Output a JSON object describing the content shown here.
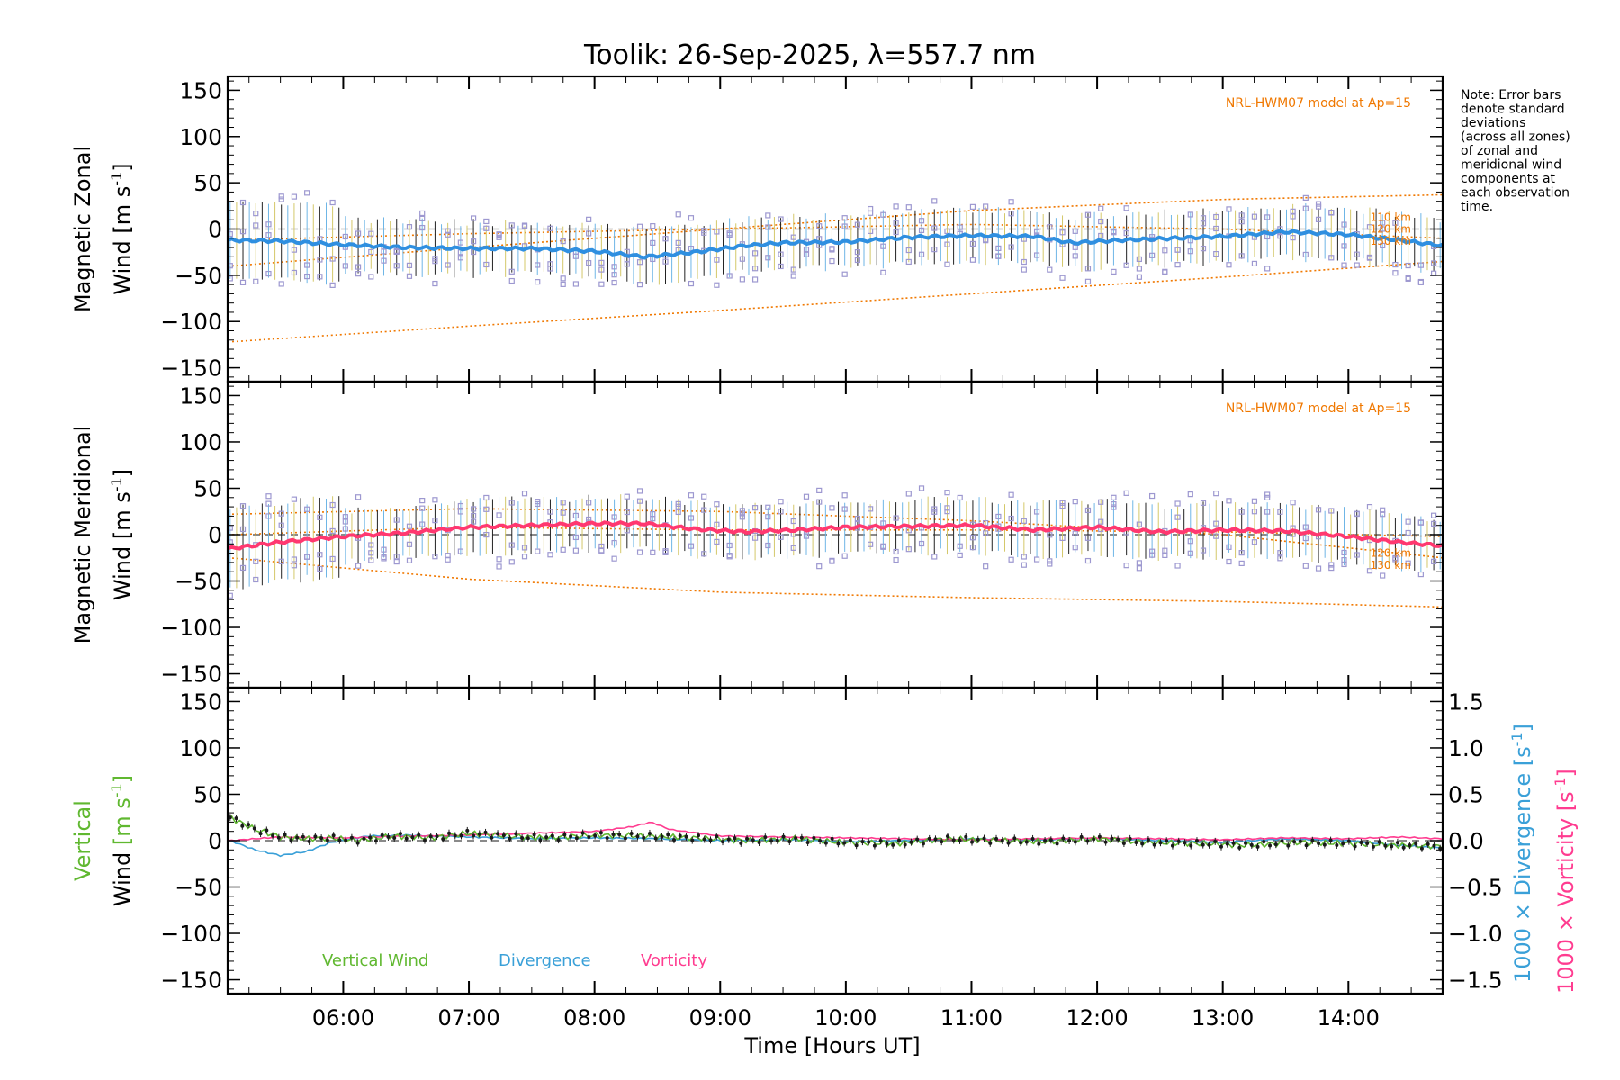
{
  "title": "Toolik: 26-Sep-2025, λ=557.7 nm",
  "note": [
    "Note: Error bars",
    "denote standard",
    "deviations",
    "(across all zones)",
    "of zonal and",
    "meridional wind",
    "components at",
    "each observation",
    "time."
  ],
  "xaxis": {
    "label": "Time [Hours UT]",
    "range": [
      5.08,
      14.75
    ],
    "ticks": [
      6,
      7,
      8,
      9,
      10,
      11,
      12,
      13,
      14
    ],
    "tick_labels": [
      "06:00",
      "07:00",
      "08:00",
      "09:00",
      "10:00",
      "11:00",
      "12:00",
      "13:00",
      "14:00"
    ]
  },
  "colors": {
    "model": "#f07800",
    "scatter": "#9d98d0",
    "zonal": "#2f8fe0",
    "meridional": "#ff3870",
    "vertical": "#60b830",
    "divergence": "#3aa0d8",
    "vorticity": "#ff3c90",
    "axis": "#000000"
  },
  "chart_data": [
    {
      "type": "line",
      "name": "zonal-panel",
      "ylabel_line1": "Magnetic Zonal",
      "ylabel_line2": "Wind [m s",
      "ylabel_sup": "-1",
      "ylabel_close": "]",
      "ylim": [
        -165,
        165
      ],
      "yticks": [
        150,
        100,
        50,
        0,
        -50,
        -100,
        -150
      ],
      "ytick_labels": [
        "150",
        "100",
        "50",
        "0",
        "−50",
        "−100",
        "−150"
      ],
      "model_label": "NRL-HWM07 model at Ap=15",
      "altitude_labels": [
        "110 km",
        "120 km",
        "130 km"
      ],
      "series": [
        {
          "name": "Zonal wind",
          "x": [
            5.1,
            5.5,
            6.0,
            6.5,
            7.0,
            7.5,
            8.0,
            8.4,
            8.8,
            9.2,
            9.5,
            10.0,
            10.5,
            11.0,
            11.5,
            11.8,
            12.2,
            12.6,
            13.0,
            13.5,
            14.0,
            14.4,
            14.75
          ],
          "y": [
            -12,
            -13,
            -17,
            -20,
            -21,
            -21,
            -24,
            -30,
            -25,
            -18,
            -15,
            -14,
            -9,
            -7,
            -8,
            -15,
            -12,
            -10,
            -8,
            -3,
            -6,
            -12,
            -18
          ]
        },
        {
          "name": "HWM07 110 km",
          "x": [
            5.1,
            7,
            9,
            11,
            13,
            14.75
          ],
          "y": [
            -12,
            -5,
            0,
            5,
            0,
            -10
          ]
        },
        {
          "name": "HWM07 120 km",
          "x": [
            5.1,
            7,
            9,
            11,
            13,
            14.75
          ],
          "y": [
            -40,
            -20,
            0,
            20,
            32,
            37
          ]
        },
        {
          "name": "HWM07 130 km",
          "x": [
            5.1,
            7,
            9,
            11,
            13,
            14.75
          ],
          "y": [
            -122,
            -105,
            -88,
            -70,
            -52,
            -35
          ]
        }
      ]
    },
    {
      "type": "line",
      "name": "meridional-panel",
      "ylabel_line1": "Magnetic Meridional",
      "ylabel_line2": "Wind [m s",
      "ylabel_sup": "-1",
      "ylabel_close": "]",
      "ylim": [
        -165,
        165
      ],
      "yticks": [
        150,
        100,
        50,
        0,
        -50,
        -100,
        -150
      ],
      "ytick_labels": [
        "150",
        "100",
        "50",
        "0",
        "−50",
        "−100",
        "−150"
      ],
      "model_label": "NRL-HWM07 model at Ap=15",
      "altitude_labels": [
        "120 km",
        "130 km"
      ],
      "series": [
        {
          "name": "Meridional wind",
          "x": [
            5.1,
            5.5,
            6.0,
            6.5,
            7.0,
            7.5,
            8.0,
            8.4,
            8.8,
            9.2,
            9.6,
            10.0,
            10.5,
            11.0,
            11.5,
            12.0,
            12.5,
            13.0,
            13.5,
            14.0,
            14.4,
            14.75
          ],
          "y": [
            -15,
            -8,
            -2,
            2,
            8,
            10,
            12,
            12,
            6,
            3,
            5,
            8,
            9,
            10,
            5,
            8,
            3,
            5,
            4,
            -2,
            -8,
            -12
          ]
        },
        {
          "name": "HWM07 110 km",
          "x": [
            5.1,
            7,
            9,
            11,
            13,
            14.75
          ],
          "y": [
            0,
            8,
            5,
            5,
            3,
            -2
          ]
        },
        {
          "name": "HWM07 120 km",
          "x": [
            5.1,
            7,
            9,
            11,
            13,
            14.75
          ],
          "y": [
            22,
            28,
            25,
            15,
            0,
            -25
          ]
        },
        {
          "name": "HWM07 130 km",
          "x": [
            5.1,
            7,
            9,
            11,
            13,
            14.75
          ],
          "y": [
            -25,
            -48,
            -62,
            -68,
            -72,
            -78
          ]
        }
      ]
    },
    {
      "type": "line",
      "name": "vertical-panel",
      "ylabel_line1": "Vertical",
      "ylabel_line2": "Wind [m s",
      "ylabel_sup": "-1",
      "ylabel_close": "]",
      "ylim": [
        -165,
        165
      ],
      "yticks": [
        150,
        100,
        50,
        0,
        -50,
        -100,
        -150
      ],
      "ytick_labels": [
        "150",
        "100",
        "50",
        "0",
        "−50",
        "−100",
        "−150"
      ],
      "right_ylim": [
        -1.65,
        1.65
      ],
      "right_yticks": [
        1.5,
        1.0,
        0.5,
        0.0,
        -0.5,
        -1.0,
        -1.5
      ],
      "right_ytick_labels": [
        "1.5",
        "1.0",
        "0.5",
        "0.0",
        "−0.5",
        "−1.0",
        "−1.5"
      ],
      "right_label_div": "1000 × Divergence [s",
      "right_label_vor": "1000 × Vorticity [s",
      "right_label_sup": "-1",
      "right_label_close": "]",
      "legend": [
        "Vertical Wind",
        "Divergence",
        "Vorticity"
      ],
      "series": [
        {
          "name": "Vertical Wind",
          "x": [
            5.1,
            5.3,
            5.5,
            5.7,
            5.9,
            6.1,
            6.4,
            6.7,
            7.0,
            7.3,
            7.6,
            8.0,
            8.4,
            8.8,
            9.2,
            9.6,
            10.0,
            10.4,
            10.8,
            11.2,
            11.6,
            12.0,
            12.4,
            12.8,
            13.2,
            13.6,
            14.0,
            14.4,
            14.75
          ],
          "y": [
            25,
            12,
            4,
            2,
            3,
            0,
            5,
            3,
            8,
            5,
            3,
            6,
            5,
            3,
            0,
            2,
            -2,
            -3,
            2,
            0,
            -1,
            2,
            -2,
            -3,
            -5,
            -2,
            -3,
            -5,
            -6
          ]
        },
        {
          "name": "Divergence",
          "x": [
            5.1,
            5.3,
            5.5,
            5.7,
            5.9,
            6.2,
            6.5,
            7.0,
            7.5,
            8.0,
            8.5,
            9.0,
            9.5,
            10.0,
            10.5,
            11.0,
            11.5,
            12.0,
            12.5,
            13.0,
            13.5,
            14.0,
            14.4,
            14.75
          ],
          "y": [
            0.0,
            -0.1,
            -0.16,
            -0.12,
            -0.02,
            0.05,
            0.06,
            0.04,
            0.02,
            0.03,
            0.02,
            0.0,
            0.01,
            -0.01,
            0.0,
            0.02,
            0.01,
            0.03,
            0.0,
            -0.02,
            0.02,
            0.0,
            -0.05,
            -0.08
          ]
        },
        {
          "name": "Vorticity",
          "x": [
            5.1,
            5.5,
            6.0,
            6.5,
            7.0,
            7.5,
            8.0,
            8.3,
            8.45,
            8.6,
            9.0,
            9.5,
            10.0,
            10.5,
            11.0,
            11.5,
            12.0,
            12.5,
            13.0,
            13.5,
            14.0,
            14.4,
            14.75
          ],
          "y": [
            0.0,
            0.04,
            0.03,
            0.05,
            0.06,
            0.08,
            0.1,
            0.15,
            0.2,
            0.12,
            0.05,
            0.04,
            0.03,
            0.02,
            0.01,
            0.02,
            0.03,
            0.02,
            0.01,
            0.03,
            0.02,
            0.04,
            0.02
          ]
        }
      ]
    }
  ]
}
